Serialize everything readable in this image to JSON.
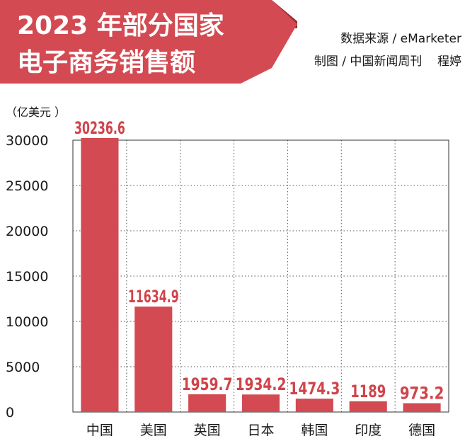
{
  "header": {
    "title_line1": "2023 年部分国家",
    "title_line2": "电子商务销售额",
    "source": "数据来源 / eMarketer",
    "credit": "制图 / 中国新闻周刊    程婷"
  },
  "colors": {
    "accent": "#d1434b",
    "bar": "#d34a52",
    "banner_dark": "#9b2a31",
    "grid": "#555555",
    "text": "#1a1a1a"
  },
  "chart_data": {
    "type": "bar",
    "title": "2023 年部分国家电子商务销售额",
    "unit_label": "（亿美元 ）",
    "categories": [
      "中国",
      "美国",
      "英国",
      "日本",
      "韩国",
      "印度",
      "德国"
    ],
    "values": [
      30236.6,
      11634.9,
      1959.7,
      1934.2,
      1474.3,
      1189,
      973.2
    ],
    "value_labels": [
      "30236.6",
      "11634.9",
      "1959.7",
      "1934.2",
      "1474.3",
      "1189",
      "973.2"
    ],
    "ylim": [
      0,
      30000
    ],
    "yticks": [
      "0",
      "5000",
      "10000",
      "15000",
      "20000",
      "25000",
      "30000"
    ],
    "grid": "dotted",
    "legend": "none"
  }
}
